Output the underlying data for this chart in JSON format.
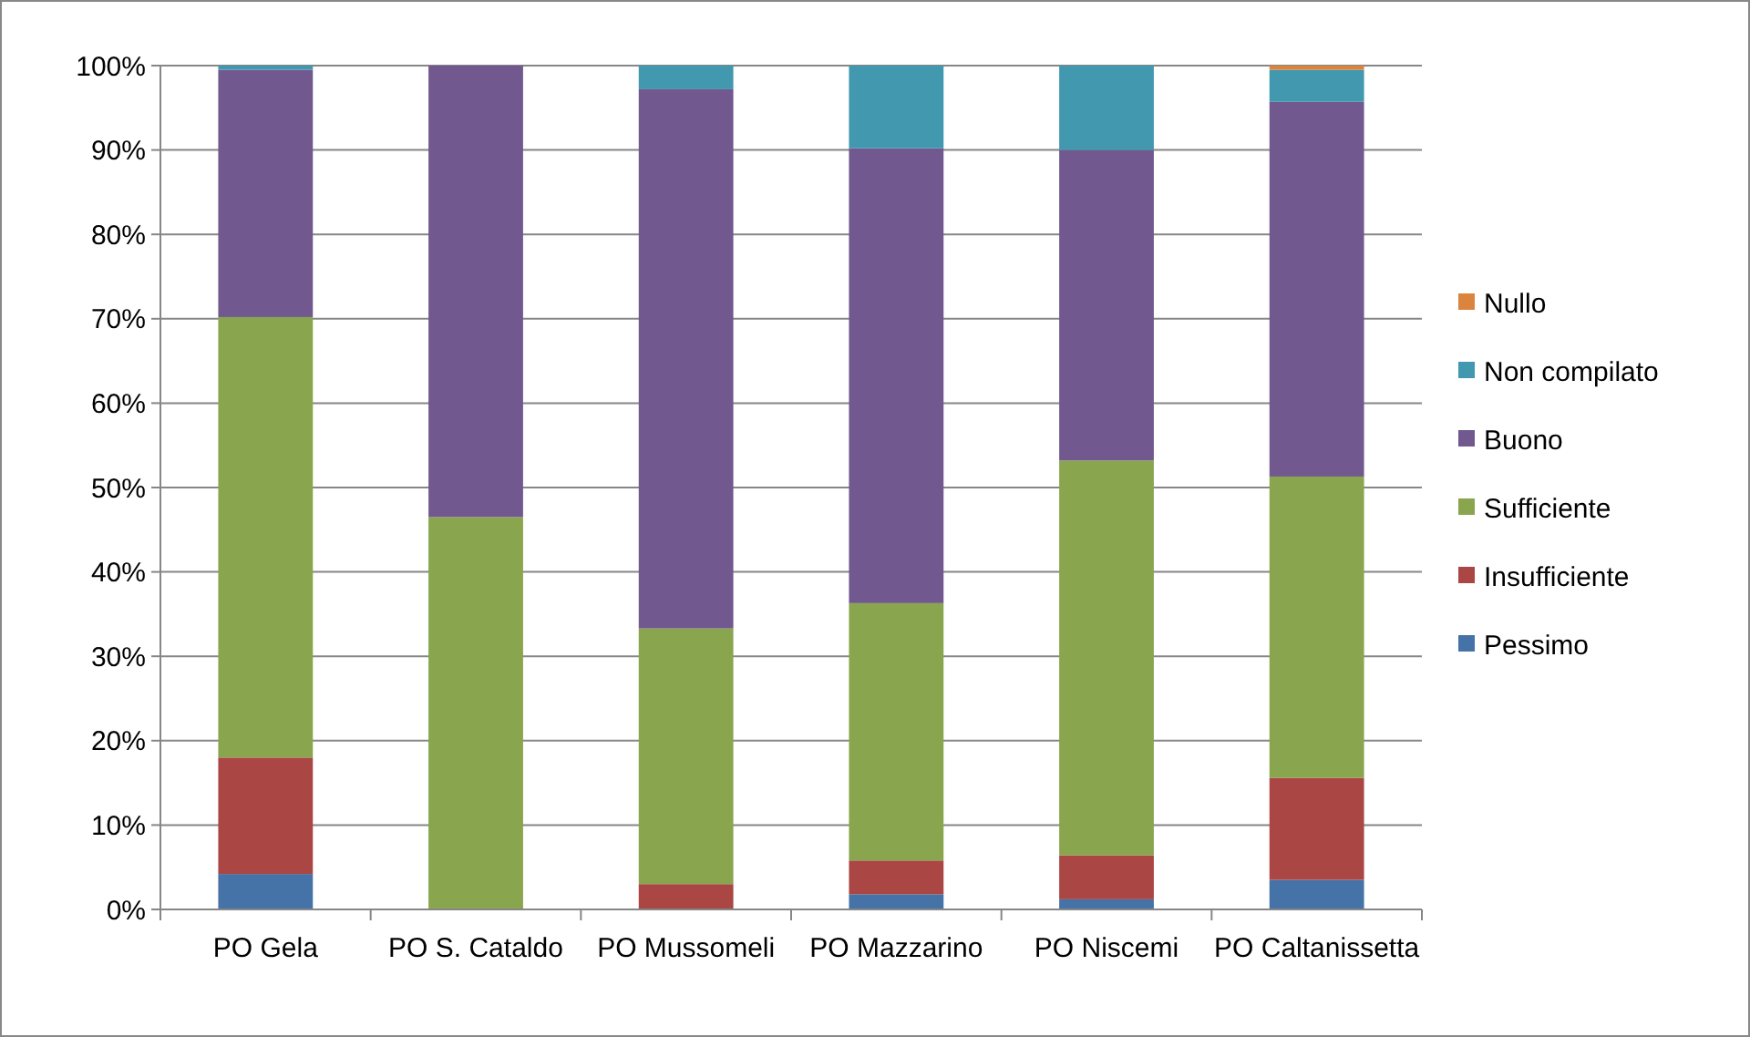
{
  "chart_data": {
    "type": "bar",
    "stacked": true,
    "categories": [
      "PO Gela",
      "PO S. Cataldo",
      "PO Mussomeli",
      "PO Mazzarino",
      "PO Niscemi",
      "PO Caltanissetta"
    ],
    "series": [
      {
        "name": "Pessimo",
        "color": "#4572a7",
        "values": [
          4.2,
          0,
          0,
          1.8,
          1.2,
          3.5
        ]
      },
      {
        "name": "Insufficiente",
        "color": "#aa4643",
        "values": [
          13.8,
          0,
          3,
          4,
          5.2,
          12.1
        ]
      },
      {
        "name": "Sufficiente",
        "color": "#89a54e",
        "values": [
          52.2,
          46.5,
          30.3,
          30.5,
          46.8,
          35.7
        ]
      },
      {
        "name": "Buono",
        "color": "#71588f",
        "values": [
          29.3,
          53.5,
          63.9,
          53.9,
          36.8,
          44.4
        ]
      },
      {
        "name": "Non compilato",
        "color": "#4198af",
        "values": [
          0.5,
          0,
          2.8,
          9.8,
          10,
          3.8
        ]
      },
      {
        "name": "Nullo",
        "color": "#db843d",
        "values": [
          0,
          0,
          0,
          0,
          0,
          0.5
        ]
      }
    ],
    "ylim": [
      0,
      100
    ],
    "yticks": [
      {
        "value": 0,
        "label": "0%"
      },
      {
        "value": 10,
        "label": "10%"
      },
      {
        "value": 20,
        "label": "20%"
      },
      {
        "value": 30,
        "label": "30%"
      },
      {
        "value": 40,
        "label": "40%"
      },
      {
        "value": 50,
        "label": "50%"
      },
      {
        "value": 60,
        "label": "60%"
      },
      {
        "value": 70,
        "label": "70%"
      },
      {
        "value": 80,
        "label": "80%"
      },
      {
        "value": 90,
        "label": "90%"
      },
      {
        "value": 100,
        "label": "100%"
      }
    ],
    "grid": "y",
    "legend": "right"
  }
}
